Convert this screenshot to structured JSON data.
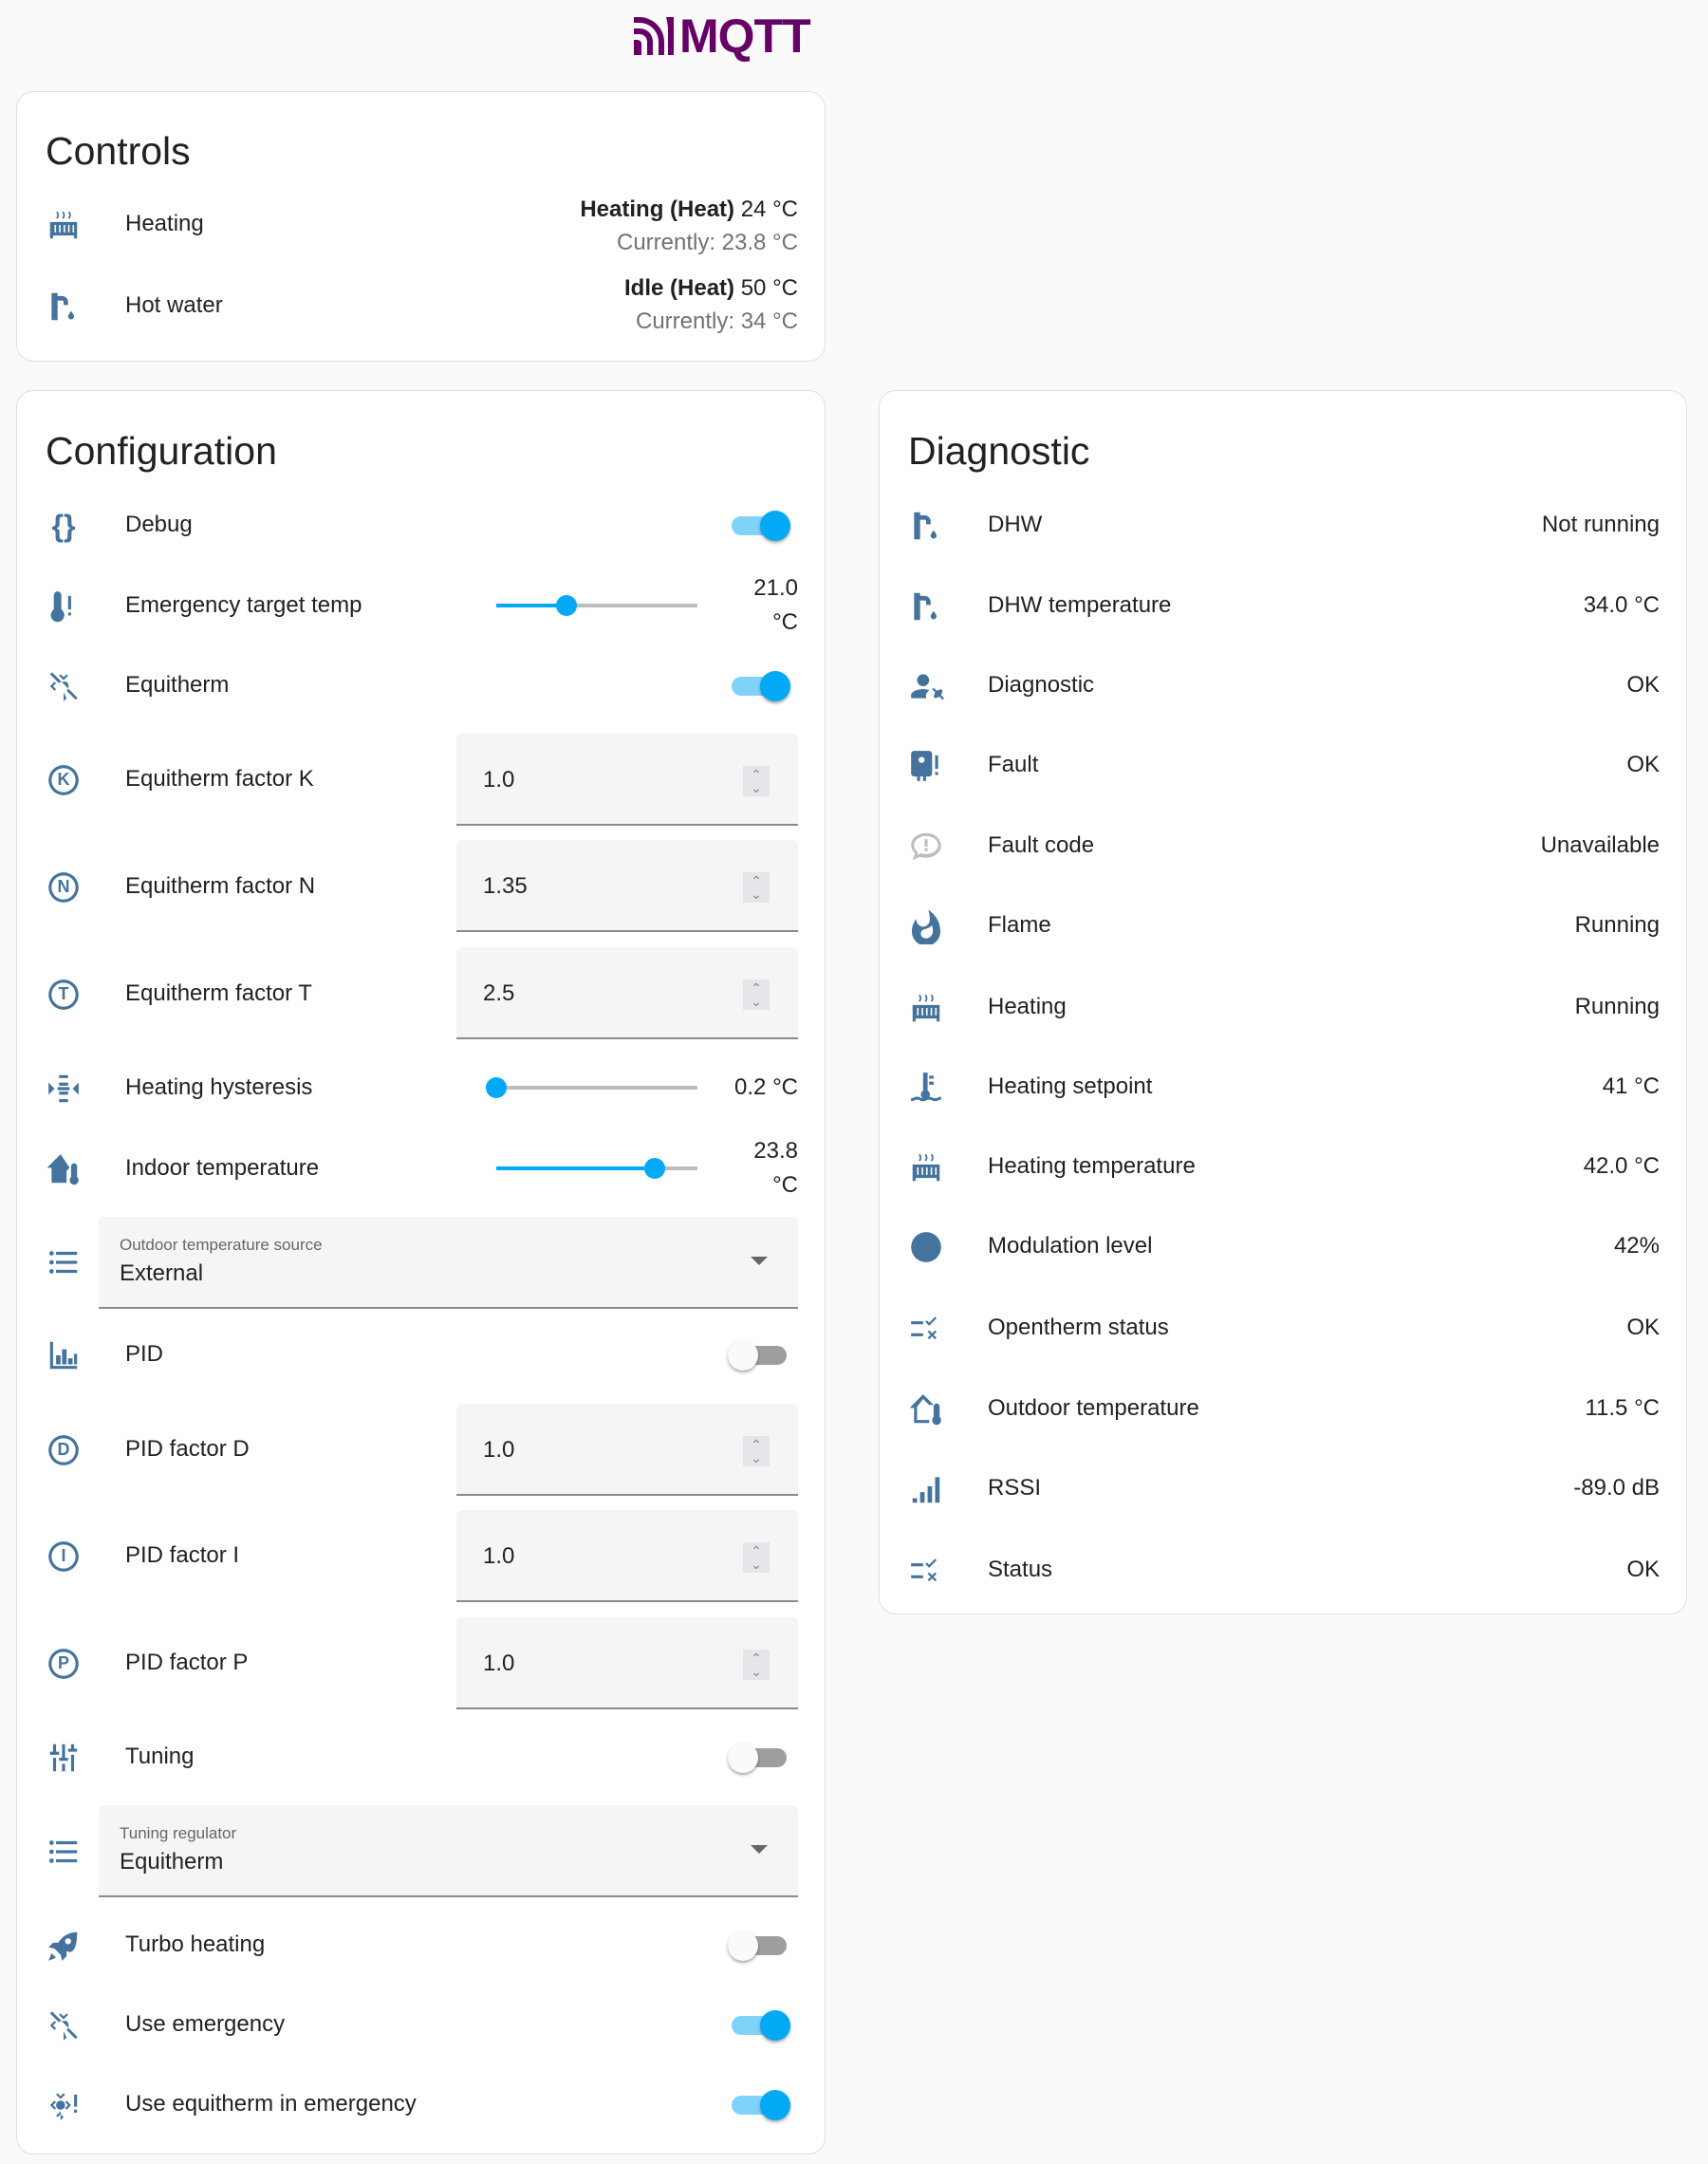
{
  "logo": {
    "text": "MQTT",
    "color": "#660066"
  },
  "accent": "#03a9f4",
  "icon_color": "#44739e",
  "controls": {
    "title": "Controls",
    "items": [
      {
        "icon": "radiator-icon",
        "label": "Heating",
        "state": "Heating (Heat)",
        "target": "24 °C",
        "current": "Currently: 23.8 °C"
      },
      {
        "icon": "water-pump-icon",
        "label": "Hot water",
        "state": "Idle (Heat)",
        "target": "50 °C",
        "current": "Currently: 34 °C"
      }
    ]
  },
  "configuration": {
    "title": "Configuration",
    "items": [
      {
        "label": "Debug",
        "type": "toggle",
        "on": true,
        "icon": "code-braces-icon"
      },
      {
        "label": "Emergency target temp",
        "type": "slider",
        "value": "21.0 °C",
        "fraction": 0.35,
        "icon": "thermometer-alert-icon"
      },
      {
        "label": "Equitherm",
        "type": "toggle",
        "on": true,
        "icon": "sun-snowflake-off-icon"
      },
      {
        "label": "Equitherm factor K",
        "type": "number",
        "value": "1.0",
        "icon": "alpha-k-circle-icon"
      },
      {
        "label": "Equitherm factor N",
        "type": "number",
        "value": "1.35",
        "icon": "alpha-n-circle-icon"
      },
      {
        "label": "Equitherm factor T",
        "type": "number",
        "value": "2.5",
        "icon": "alpha-t-circle-icon"
      },
      {
        "label": "Heating hysteresis",
        "type": "slider",
        "value": "0.2 °C",
        "fraction": 0,
        "icon": "arrow-collapse-icon"
      },
      {
        "label": "Indoor temperature",
        "type": "slider",
        "value": "23.8 °C",
        "fraction": 0.79,
        "icon": "home-thermometer-icon"
      },
      {
        "label": "Outdoor temperature source",
        "type": "select",
        "value": "External",
        "icon": "format-list-bulleted-icon"
      },
      {
        "label": "PID",
        "type": "toggle",
        "on": false,
        "icon": "chart-bar-icon"
      },
      {
        "label": "PID factor D",
        "type": "number",
        "value": "1.0",
        "icon": "alpha-d-circle-icon"
      },
      {
        "label": "PID factor I",
        "type": "number",
        "value": "1.0",
        "icon": "alpha-i-circle-icon"
      },
      {
        "label": "PID factor P",
        "type": "number",
        "value": "1.0",
        "icon": "alpha-p-circle-icon"
      },
      {
        "label": "Tuning",
        "type": "toggle",
        "on": false,
        "icon": "tune-vertical-icon"
      },
      {
        "label": "Tuning regulator",
        "type": "select",
        "value": "Equitherm",
        "icon": "format-list-bulleted-icon"
      },
      {
        "label": "Turbo heating",
        "type": "toggle",
        "on": false,
        "icon": "rocket-launch-icon"
      },
      {
        "label": "Use emergency",
        "type": "toggle",
        "on": true,
        "icon": "sun-snowflake-off-icon"
      },
      {
        "label": "Use equitherm in emergency",
        "type": "toggle",
        "on": true,
        "icon": "sun-snowflake-alert-icon"
      }
    ]
  },
  "diagnostic": {
    "title": "Diagnostic",
    "items": [
      {
        "label": "DHW",
        "value": "Not running",
        "icon": "water-pump-icon"
      },
      {
        "label": "DHW temperature",
        "value": "34.0 °C",
        "icon": "water-pump-icon"
      },
      {
        "label": "Diagnostic",
        "value": "OK",
        "icon": "account-wrench-icon"
      },
      {
        "label": "Fault",
        "value": "OK",
        "icon": "water-boiler-alert-icon"
      },
      {
        "label": "Fault code",
        "value": "Unavailable",
        "icon": "chat-alert-icon"
      },
      {
        "label": "Flame",
        "value": "Running",
        "icon": "fire-icon"
      },
      {
        "label": "Heating",
        "value": "Running",
        "icon": "radiator-icon"
      },
      {
        "label": "Heating setpoint",
        "value": "41 °C",
        "icon": "thermometer-water-icon"
      },
      {
        "label": "Heating temperature",
        "value": "42.0 °C",
        "icon": "radiator-icon"
      },
      {
        "label": "Modulation level",
        "value": "42%",
        "icon": "fire-circle-icon"
      },
      {
        "label": "Opentherm status",
        "value": "OK",
        "icon": "list-status-icon"
      },
      {
        "label": "Outdoor temperature",
        "value": "11.5 °C",
        "icon": "home-thermometer-outline-icon"
      },
      {
        "label": "RSSI",
        "value": "-89.0 dB",
        "icon": "signal-icon"
      },
      {
        "label": "Status",
        "value": "OK",
        "icon": "list-status-icon"
      }
    ]
  }
}
